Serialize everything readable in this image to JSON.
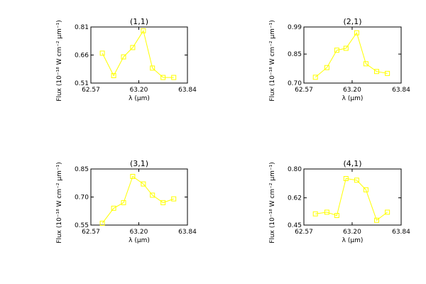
{
  "colors": {
    "series": "#ffff00",
    "axis": "#000000",
    "background": "#ffffff"
  },
  "axis_labels": {
    "xlabel": "λ (μm)",
    "ylabel": "Flux (10⁻¹⁸ W cm⁻² μm⁻¹)"
  },
  "chart_data": [
    {
      "type": "line",
      "title": "(1,1)",
      "xlabel": "λ (μm)",
      "ylabel": "Flux (10⁻¹⁸ W cm⁻² μm⁻¹)",
      "xlim": [
        62.57,
        63.84
      ],
      "ylim": [
        0.51,
        0.81
      ],
      "xticks": [
        62.57,
        63.2,
        63.84
      ],
      "xtick_labels": [
        "62.57",
        "63.20",
        "63.84"
      ],
      "yticks": [
        0.51,
        0.66,
        0.81
      ],
      "ytick_labels": [
        "0.51",
        "0.66",
        "0.81"
      ],
      "grid": false,
      "marker": "open-square",
      "series": [
        {
          "x": [
            62.72,
            62.87,
            63.0,
            63.12,
            63.26,
            63.38,
            63.52,
            63.66
          ],
          "y": [
            0.67,
            0.55,
            0.65,
            0.7,
            0.79,
            0.59,
            0.54,
            0.54
          ]
        }
      ]
    },
    {
      "type": "line",
      "title": "(2,1)",
      "xlabel": "λ (μm)",
      "ylabel": "Flux (10⁻¹⁸ W cm⁻² μm⁻¹)",
      "xlim": [
        62.57,
        63.84
      ],
      "ylim": [
        0.7,
        0.99
      ],
      "xticks": [
        62.57,
        63.2,
        63.84
      ],
      "xtick_labels": [
        "62.57",
        "63.20",
        "63.84"
      ],
      "yticks": [
        0.7,
        0.85,
        0.99
      ],
      "ytick_labels": [
        "0.70",
        "0.85",
        "0.99"
      ],
      "grid": false,
      "marker": "open-square",
      "series": [
        {
          "x": [
            62.72,
            62.87,
            63.0,
            63.12,
            63.26,
            63.38,
            63.52,
            63.66
          ],
          "y": [
            0.73,
            0.78,
            0.87,
            0.88,
            0.96,
            0.8,
            0.76,
            0.75
          ]
        }
      ]
    },
    {
      "type": "line",
      "title": "(3,1)",
      "xlabel": "λ (μm)",
      "ylabel": "Flux (10⁻¹⁸ W cm⁻² μm⁻¹)",
      "xlim": [
        62.57,
        63.84
      ],
      "ylim": [
        0.55,
        0.85
      ],
      "xticks": [
        62.57,
        63.2,
        63.84
      ],
      "xtick_labels": [
        "62.57",
        "63.20",
        "63.84"
      ],
      "yticks": [
        0.55,
        0.7,
        0.85
      ],
      "ytick_labels": [
        "0.55",
        "0.70",
        "0.85"
      ],
      "grid": false,
      "marker": "open-square",
      "series": [
        {
          "x": [
            62.72,
            62.87,
            63.0,
            63.12,
            63.26,
            63.38,
            63.52,
            63.66
          ],
          "y": [
            0.56,
            0.64,
            0.67,
            0.81,
            0.77,
            0.71,
            0.67,
            0.69
          ]
        }
      ]
    },
    {
      "type": "line",
      "title": "(4,1)",
      "xlabel": "λ (μm)",
      "ylabel": "Flux (10⁻¹⁸ W cm⁻² μm⁻¹)",
      "xlim": [
        62.57,
        63.84
      ],
      "ylim": [
        0.45,
        0.8
      ],
      "xticks": [
        62.57,
        63.2,
        63.84
      ],
      "xtick_labels": [
        "62.57",
        "63.20",
        "63.84"
      ],
      "yticks": [
        0.45,
        0.62,
        0.8
      ],
      "ytick_labels": [
        "0.45",
        "0.62",
        "0.80"
      ],
      "grid": false,
      "marker": "open-square",
      "series": [
        {
          "x": [
            62.72,
            62.87,
            63.0,
            63.12,
            63.26,
            63.38,
            63.52,
            63.66
          ],
          "y": [
            0.52,
            0.53,
            0.51,
            0.74,
            0.73,
            0.67,
            0.48,
            0.53
          ]
        }
      ]
    }
  ]
}
